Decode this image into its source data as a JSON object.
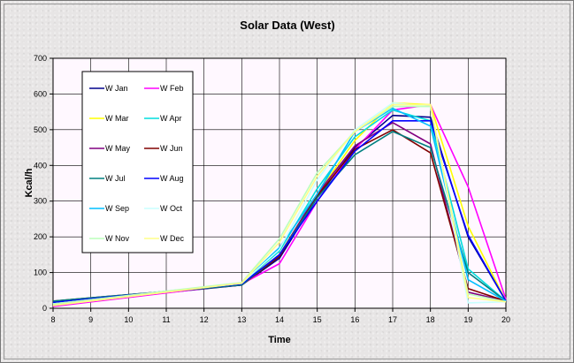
{
  "chart_data": {
    "type": "line",
    "title": "Solar Data (West)",
    "xlabel": "Time",
    "ylabel": "Kcal/h",
    "xlim": [
      8,
      20
    ],
    "ylim": [
      0,
      700
    ],
    "x_ticks": [
      8,
      9,
      10,
      11,
      12,
      13,
      14,
      15,
      16,
      17,
      18,
      19,
      20
    ],
    "y_ticks": [
      0,
      100,
      200,
      300,
      400,
      500,
      600,
      700
    ],
    "grid": true,
    "legend_position": "left",
    "x": [
      8,
      13,
      14,
      15,
      16,
      17,
      18,
      19,
      20
    ],
    "series": [
      {
        "name": "W Jan",
        "color": "#00008b",
        "values": [
          12,
          65,
          140,
          310,
          450,
          540,
          535,
          200,
          20
        ]
      },
      {
        "name": "W Feb",
        "color": "#ff00ff",
        "values": [
          5,
          68,
          125,
          300,
          445,
          555,
          570,
          340,
          25
        ]
      },
      {
        "name": "W Mar",
        "color": "#ffff00",
        "values": [
          8,
          70,
          150,
          320,
          470,
          575,
          570,
          230,
          20
        ]
      },
      {
        "name": "W Apr",
        "color": "#00dddd",
        "values": [
          14,
          70,
          160,
          335,
          480,
          555,
          525,
          110,
          20
        ]
      },
      {
        "name": "W May",
        "color": "#800080",
        "values": [
          18,
          65,
          150,
          320,
          455,
          520,
          460,
          45,
          20
        ]
      },
      {
        "name": "W Jun",
        "color": "#800000",
        "values": [
          20,
          65,
          145,
          315,
          445,
          500,
          435,
          55,
          20
        ]
      },
      {
        "name": "W Jul",
        "color": "#008080",
        "values": [
          20,
          65,
          150,
          310,
          430,
          495,
          450,
          100,
          20
        ]
      },
      {
        "name": "W Aug",
        "color": "#0000ff",
        "values": [
          16,
          68,
          150,
          300,
          440,
          525,
          525,
          205,
          20
        ]
      },
      {
        "name": "W Sep",
        "color": "#00bfff",
        "values": [
          12,
          70,
          170,
          320,
          495,
          560,
          510,
          80,
          20
        ]
      },
      {
        "name": "W Oct",
        "color": "#c8ffff",
        "values": [
          12,
          70,
          165,
          360,
          500,
          575,
          565,
          15,
          18
        ]
      },
      {
        "name": "W Nov",
        "color": "#bbffbb",
        "values": [
          12,
          72,
          195,
          380,
          495,
          565,
          565,
          40,
          18
        ]
      },
      {
        "name": "W Dec",
        "color": "#ffff88",
        "values": [
          8,
          70,
          185,
          370,
          495,
          570,
          570,
          30,
          18
        ]
      }
    ]
  }
}
